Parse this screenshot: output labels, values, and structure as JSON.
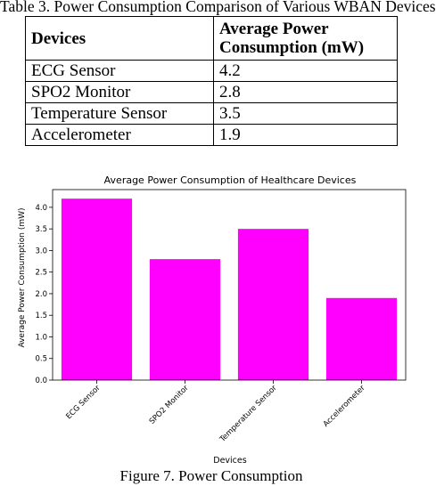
{
  "table": {
    "caption": "Table 3. Power Consumption Comparison of Various WBAN Devices",
    "headers": [
      "Devices",
      "Average Power",
      "Consumption (mW)"
    ],
    "rows": [
      {
        "device": "ECG Sensor",
        "power": "4.2"
      },
      {
        "device": "SPO2 Monitor",
        "power": "2.8"
      },
      {
        "device": "Temperature Sensor",
        "power": "3.5"
      },
      {
        "device": "Accelerometer",
        "power": "1.9"
      }
    ]
  },
  "chart_data": {
    "type": "bar",
    "title": "Average Power Consumption of Healthcare Devices",
    "xlabel": "Devices",
    "ylabel": "Average Power Consumption (mW)",
    "categories": [
      "ECG Sensor",
      "SPO2 Monitor",
      "Temperature Sensor",
      "Accelerometer"
    ],
    "values": [
      4.2,
      2.8,
      3.5,
      1.9
    ],
    "ylim": [
      0,
      4.41
    ],
    "yticks": [
      "0.0",
      "0.5",
      "1.0",
      "1.5",
      "2.0",
      "2.5",
      "3.0",
      "3.5",
      "4.0"
    ],
    "bar_color": "#ff00ff",
    "grid": false,
    "legend": "none"
  },
  "figure": {
    "caption": "Figure 7. Power Consumption"
  }
}
